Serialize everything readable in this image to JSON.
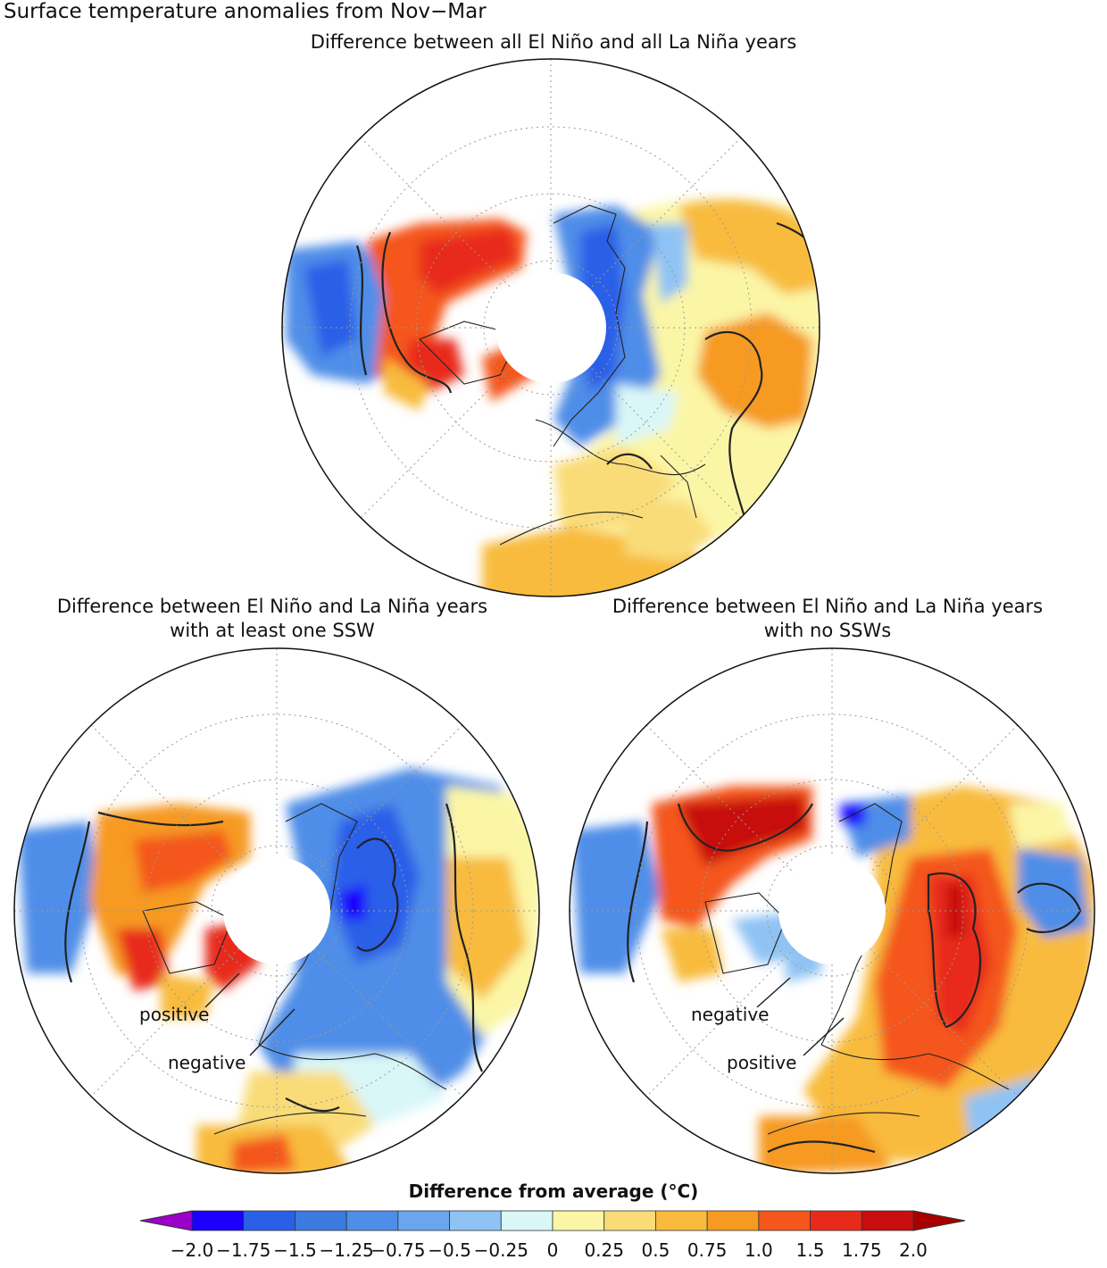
{
  "title": "Surface temperature anomalies from Nov−Mar",
  "panels": [
    {
      "title": "Difference between all El Niño and all La Niña years"
    },
    {
      "title_line1": "Difference between El Niño and La Niña years",
      "title_line2": "with at least one SSW",
      "callouts": [
        "positive",
        "negative"
      ]
    },
    {
      "title_line1": "Difference between El Niño and La Niña years",
      "title_line2": "with no SSWs",
      "callouts": [
        "negative",
        "positive"
      ]
    }
  ],
  "colorbar": {
    "title": "Difference from average (°C)",
    "ticks": [
      "−2.0",
      "−1.75",
      "−1.5",
      "−1.25",
      "−0.75",
      "−0.5",
      "−0.25",
      "0",
      "0.25",
      "0.5",
      "0.75",
      "1.0",
      "1.5",
      "1.75",
      "2.0"
    ],
    "colors": [
      "#1b00ff",
      "#2a5fe8",
      "#3c7ae0",
      "#4f8ee8",
      "#6aa6ee",
      "#8fc3f4",
      "#d9f7f7",
      "#fbf6a6",
      "#f9dc78",
      "#f8bb3e",
      "#f69a22",
      "#f4561c",
      "#e82a1a",
      "#c80e0e"
    ],
    "low_color": "#9b00c8",
    "high_color": "#a80000"
  }
}
